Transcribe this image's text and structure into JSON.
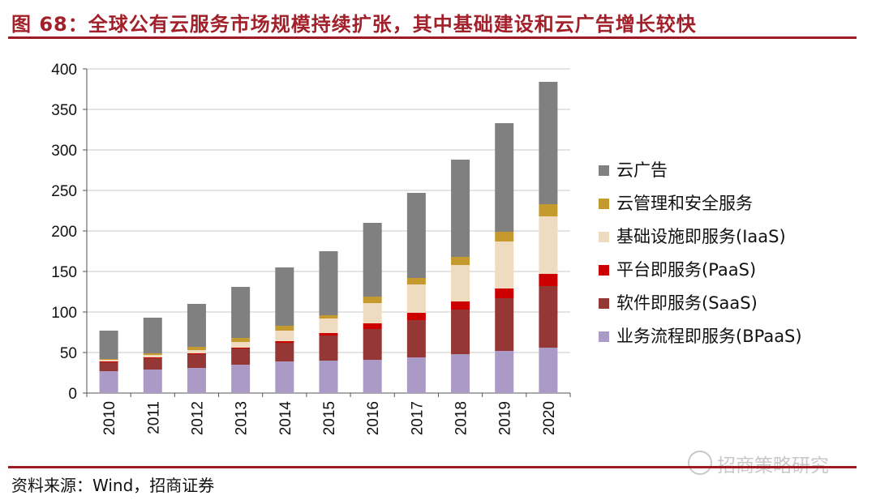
{
  "title": "图 68：全球公有云服务市场规模持续扩张，其中基础建设和云广告增长较快",
  "source": "资料来源：Wind，招商证券",
  "watermark": "招商策略研究",
  "chart_data": {
    "type": "bar",
    "stacked": true,
    "categories": [
      "2010",
      "2011",
      "2012",
      "2013",
      "2014",
      "2015",
      "2016",
      "2017",
      "2018",
      "2019",
      "2020"
    ],
    "ylim": [
      0,
      400
    ],
    "yticks": [
      0,
      50,
      100,
      150,
      200,
      250,
      300,
      350,
      400
    ],
    "grid": true,
    "legend_position": "right",
    "series": [
      {
        "name": "业务流程即服务(BPaaS)",
        "color": "#ab9ac6",
        "values": [
          27,
          29,
          31,
          35,
          39,
          40,
          41,
          44,
          48,
          52,
          56
        ]
      },
      {
        "name": "软件即服务(SaaS)",
        "color": "#953735",
        "values": [
          11,
          14,
          17,
          20,
          23,
          31,
          38,
          46,
          55,
          65,
          76
        ]
      },
      {
        "name": "平台即服务(PaaS)",
        "color": "#cc0000",
        "values": [
          1,
          1,
          1,
          1,
          2,
          3,
          7,
          9,
          10,
          12,
          15
        ]
      },
      {
        "name": "基础设施即服务(IaaS)",
        "color": "#efdcc0",
        "values": [
          2,
          3,
          4,
          7,
          13,
          18,
          25,
          35,
          45,
          58,
          71
        ]
      },
      {
        "name": "云管理和安全服务",
        "color": "#c49a2f",
        "values": [
          1,
          2,
          4,
          5,
          6,
          4,
          8,
          8,
          10,
          12,
          15
        ]
      },
      {
        "name": "云广告",
        "color": "#808080",
        "values": [
          35,
          44,
          53,
          63,
          72,
          79,
          91,
          105,
          120,
          134,
          151
        ]
      }
    ]
  },
  "legend": [
    {
      "label": "云广告",
      "color": "#808080"
    },
    {
      "label": "云管理和安全服务",
      "color": "#c49a2f"
    },
    {
      "label": "基础设施即服务(IaaS)",
      "color": "#efdcc0"
    },
    {
      "label": "平台即服务(PaaS)",
      "color": "#cc0000"
    },
    {
      "label": "软件即服务(SaaS)",
      "color": "#953735"
    },
    {
      "label": "业务流程即服务(BPaaS)",
      "color": "#ab9ac6"
    }
  ]
}
